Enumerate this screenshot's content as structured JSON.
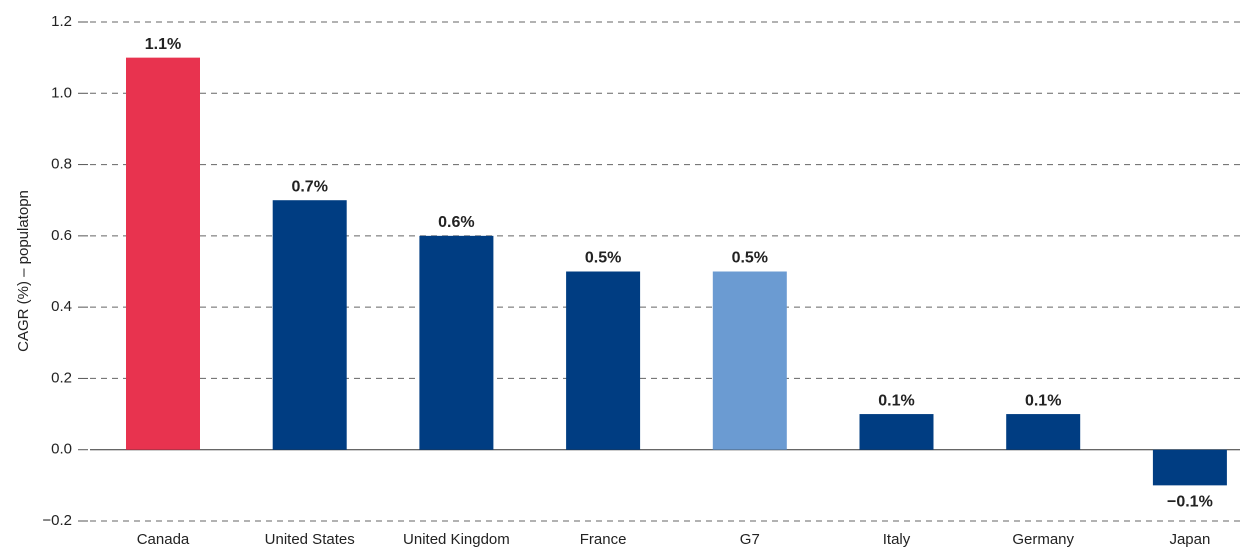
{
  "chart_data": {
    "type": "bar",
    "y_label": "CAGR (%) – populatopn",
    "categories": [
      "Canada",
      "United States",
      "United Kingdom",
      "France",
      "G7",
      "Italy",
      "Germany",
      "Japan"
    ],
    "values": [
      1.1,
      0.7,
      0.6,
      0.5,
      0.5,
      0.1,
      0.1,
      -0.1
    ],
    "value_labels": [
      "1.1%",
      "0.7%",
      "0.6%",
      "0.5%",
      "0.5%",
      "0.1%",
      "0.1%",
      "−0.1%"
    ],
    "colors": [
      "#e8334f",
      "#003d82",
      "#003d82",
      "#003d82",
      "#6b9bd2",
      "#003d82",
      "#003d82",
      "#003d82"
    ],
    "ylim": [
      -0.2,
      1.2
    ],
    "yticks": [
      {
        "value": -0.2,
        "label": "−0.2"
      },
      {
        "value": 0,
        "label": "0.0"
      },
      0.2,
      0.4,
      0.6,
      0.8,
      {
        "value": 1,
        "label": "1.0"
      },
      1.2
    ],
    "grid": true
  }
}
